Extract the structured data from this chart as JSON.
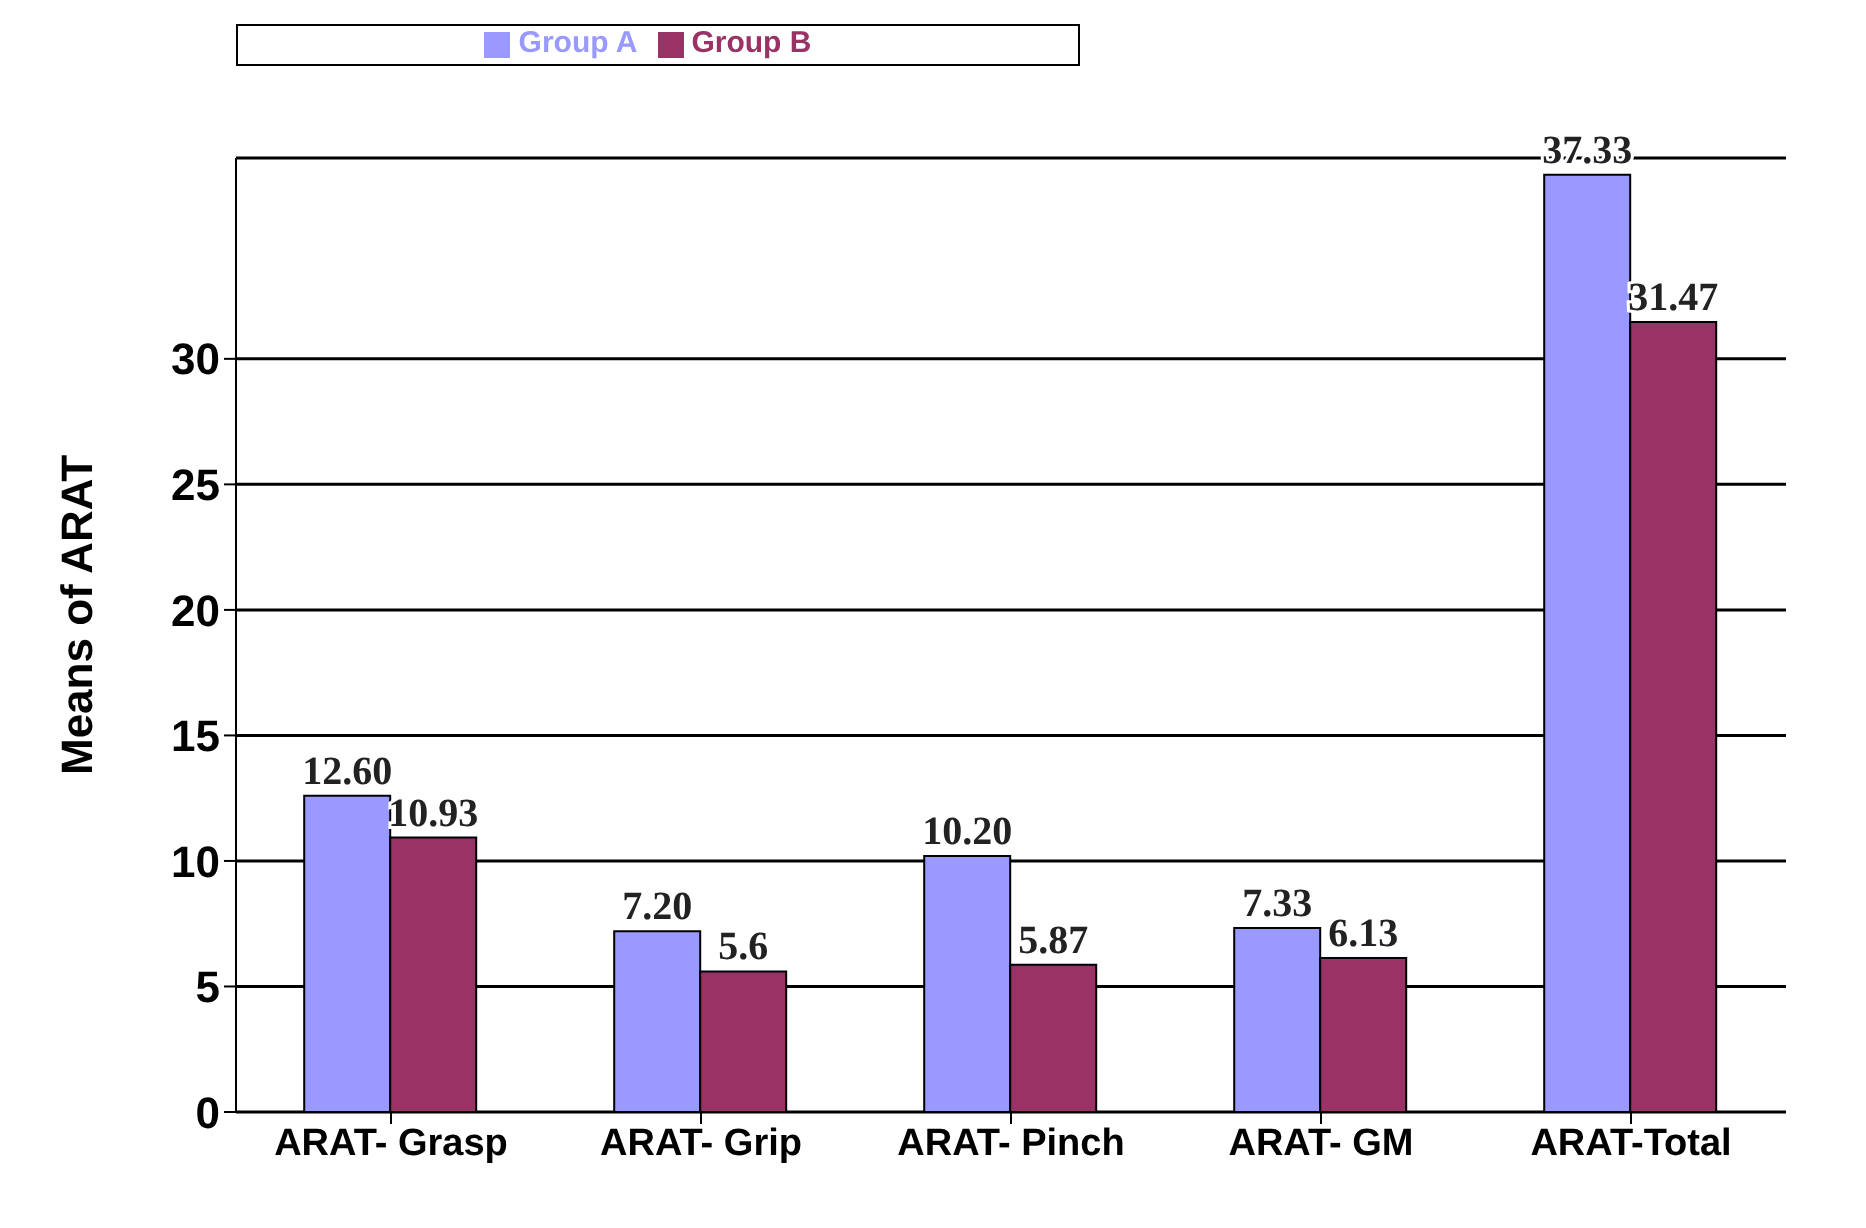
{
  "chart_data": {
    "type": "bar",
    "ylabel": "Means of ARAT",
    "categories": [
      "ARAT- Grasp",
      "ARAT- Grip",
      "ARAT- Pinch",
      "ARAT- GM",
      "ARAT-Total"
    ],
    "series": [
      {
        "name": "Group A",
        "color": "#9999ff",
        "values": [
          12.6,
          7.2,
          10.2,
          7.33,
          37.33
        ],
        "value_labels": [
          "12.60",
          "7.20",
          "10.20",
          "7.33",
          "37.33"
        ]
      },
      {
        "name": "Group B",
        "color": "#993366",
        "values": [
          10.93,
          5.6,
          5.87,
          6.13,
          31.47
        ],
        "value_labels": [
          "10.93",
          "5.6",
          "5.87",
          "6.13",
          "31.47"
        ]
      }
    ],
    "ylim": [
      0,
      38
    ],
    "yticks": [
      0,
      5,
      10,
      15,
      20,
      25,
      30
    ],
    "grid": "y",
    "legend": "top"
  }
}
